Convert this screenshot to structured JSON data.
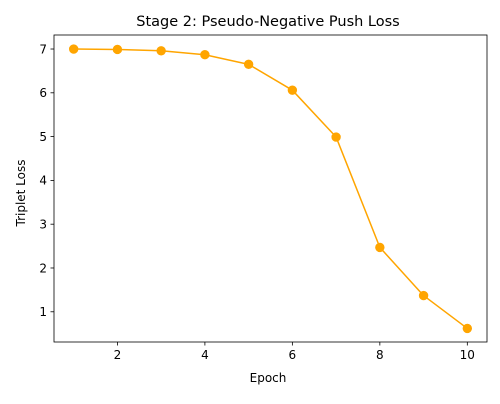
{
  "chart_data": {
    "type": "line",
    "title": "Stage 2: Pseudo-Negative Push Loss",
    "xlabel": "Epoch",
    "ylabel": "Triplet Loss",
    "x": [
      1,
      2,
      3,
      4,
      5,
      6,
      7,
      8,
      9,
      10
    ],
    "series": [
      {
        "values": [
          7.0,
          6.99,
          6.96,
          6.87,
          6.65,
          6.06,
          4.99,
          2.47,
          1.37,
          0.62
        ],
        "color": "#FFA500",
        "marker": "circle"
      }
    ],
    "xlim": [
      0.55,
      10.45
    ],
    "ylim": [
      0.31,
      7.32
    ],
    "xticks": [
      2,
      4,
      6,
      8,
      10
    ],
    "yticks": [
      1,
      2,
      3,
      4,
      5,
      6,
      7
    ],
    "grid": false,
    "legend": "none"
  }
}
